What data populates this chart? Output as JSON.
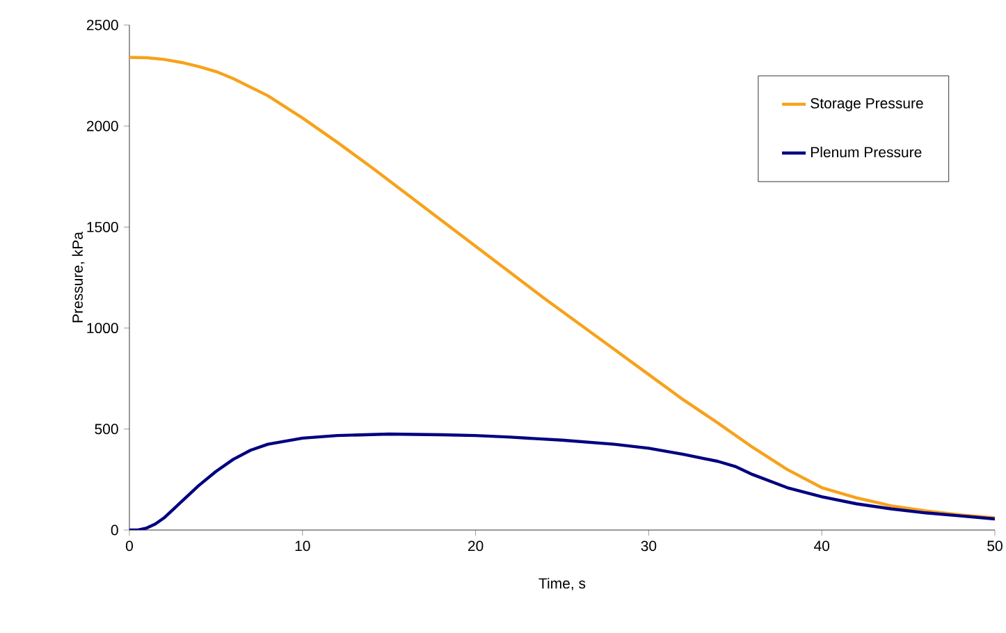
{
  "chart_data": {
    "type": "line",
    "xlabel": "Time, s",
    "ylabel": "Pressure, kPa",
    "xlim": [
      0,
      50
    ],
    "ylim": [
      0,
      2500
    ],
    "xticks": [
      0,
      10,
      20,
      30,
      40,
      50
    ],
    "yticks": [
      0,
      500,
      1000,
      1500,
      2000,
      2500
    ],
    "grid": false,
    "legend": "top right",
    "marker": "none",
    "line_style": "solid",
    "series": [
      {
        "name": "Storage Pressure",
        "color": "#f7a21b",
        "x": [
          0,
          1,
          2,
          3,
          4,
          5,
          6,
          8,
          10,
          12,
          14,
          16,
          18,
          20,
          22,
          24,
          26,
          28,
          30,
          32,
          34,
          36,
          38,
          40,
          42,
          44,
          46,
          48,
          50
        ],
        "values": [
          2340,
          2338,
          2330,
          2315,
          2295,
          2270,
          2235,
          2150,
          2040,
          1920,
          1795,
          1665,
          1535,
          1405,
          1275,
          1145,
          1020,
          895,
          770,
          645,
          530,
          410,
          300,
          210,
          160,
          120,
          95,
          75,
          60
        ]
      },
      {
        "name": "Plenum Pressure",
        "color": "#000080",
        "x": [
          0,
          0.5,
          1,
          1.5,
          2,
          3,
          4,
          5,
          6,
          7,
          8,
          10,
          12,
          15,
          18,
          20,
          22,
          25,
          28,
          30,
          32,
          34,
          35,
          36,
          38,
          40,
          42,
          44,
          46,
          48,
          50
        ],
        "values": [
          0,
          0,
          10,
          30,
          60,
          140,
          220,
          290,
          350,
          395,
          425,
          455,
          468,
          475,
          472,
          468,
          460,
          445,
          425,
          405,
          375,
          340,
          315,
          275,
          210,
          165,
          130,
          105,
          85,
          70,
          55
        ]
      }
    ]
  }
}
